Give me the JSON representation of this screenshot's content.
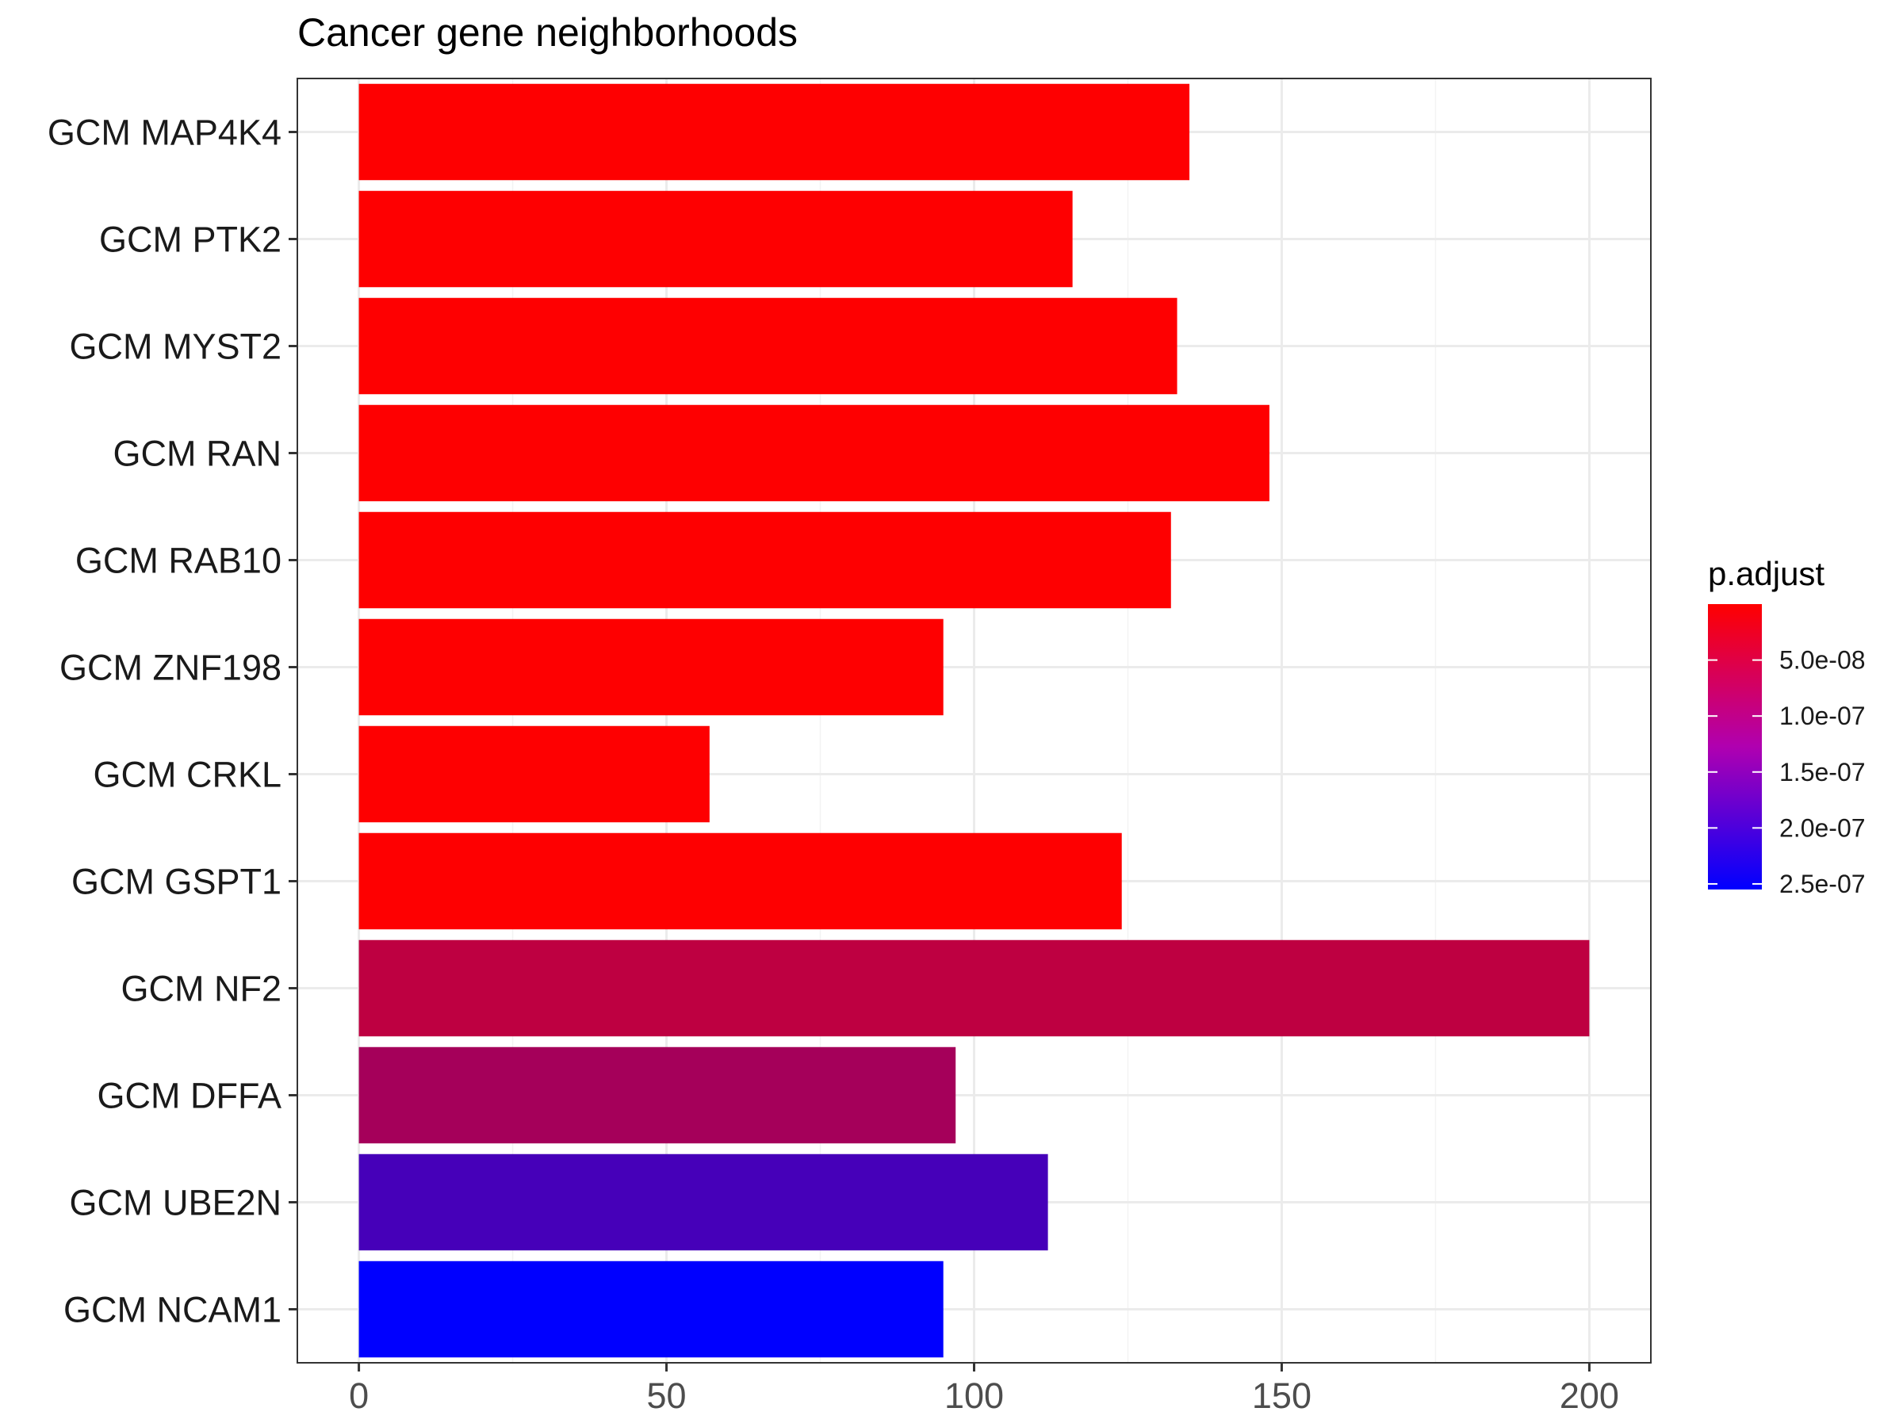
{
  "chart_data": {
    "type": "bar",
    "orientation": "horizontal",
    "title": "Cancer gene neighborhoods",
    "xlabel": "",
    "ylabel": "",
    "xlim": [
      -10,
      210
    ],
    "x_ticks": [
      0,
      50,
      100,
      150,
      200
    ],
    "x_tick_labels": [
      "0",
      "50",
      "100",
      "150",
      "200"
    ],
    "grid": true,
    "categories": [
      "GCM MAP4K4",
      "GCM PTK2",
      "GCM MYST2",
      "GCM RAN",
      "GCM RAB10",
      "GCM ZNF198",
      "GCM CRKL",
      "GCM GSPT1",
      "GCM NF2",
      "GCM DFFA",
      "GCM UBE2N",
      "GCM NCAM1"
    ],
    "values": [
      135,
      116,
      133,
      148,
      132,
      95,
      57,
      124,
      200,
      97,
      112,
      95
    ],
    "p_adjust": [
      1e-09,
      1e-09,
      1e-09,
      1e-09,
      1e-09,
      1e-09,
      1e-09,
      1e-09,
      6.5e-08,
      9e-08,
      1.85e-07,
      2.55e-07
    ],
    "color_legend": {
      "title": "p.adjust",
      "placement": "right",
      "low_color": "#ff0000",
      "high_color": "#0000ff",
      "range": [
        0,
        2.55e-07
      ],
      "ticks": [
        5e-08,
        1e-07,
        1.5e-07,
        2e-07,
        2.5e-07
      ],
      "tick_labels": [
        "5.0e-08",
        "1.0e-07",
        "1.5e-07",
        "2.0e-07",
        "2.5e-07"
      ]
    }
  }
}
